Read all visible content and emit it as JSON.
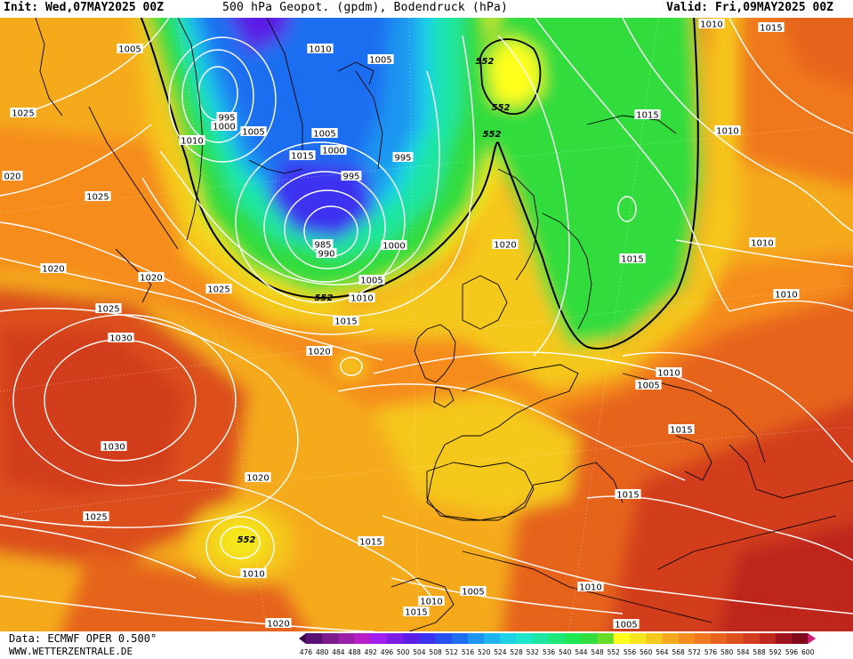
{
  "header": {
    "init": "Init: Wed,07MAY2025 00Z",
    "title": "500 hPa Geopot. (gpdm), Bodendruck (hPa)",
    "valid": "Valid: Fri,09MAY2025 00Z"
  },
  "footer": {
    "data_source": "Data: ECMWF OPER 0.500°",
    "website": "WWW.WETTERZENTRALE.DE"
  },
  "legend": {
    "values": [
      "476",
      "480",
      "484",
      "488",
      "492",
      "496",
      "500",
      "504",
      "508",
      "512",
      "516",
      "520",
      "524",
      "528",
      "532",
      "536",
      "540",
      "544",
      "548",
      "552",
      "556",
      "560",
      "564",
      "568",
      "572",
      "576",
      "580",
      "584",
      "588",
      "592",
      "596",
      "600"
    ],
    "colors": [
      "#3c0a50",
      "#5a1070",
      "#7a1c8c",
      "#9a1fa8",
      "#b81ec8",
      "#a01ef0",
      "#7d1ee6",
      "#5a1ee6",
      "#3c32f0",
      "#2850f0",
      "#1e6ef0",
      "#1e96f0",
      "#1eb4f0",
      "#1ed2e6",
      "#1ee6c8",
      "#1ee6a0",
      "#1ee678",
      "#1ee650",
      "#32dc3c",
      "#64dc28",
      "#ffff1e",
      "#f5e61e",
      "#f5c81e",
      "#f5aa1e",
      "#f58c1e",
      "#f0781e",
      "#e6641e",
      "#dc501e",
      "#d23c1e",
      "#be281e",
      "#a0141e",
      "#820a1e",
      "#d21e78"
    ]
  },
  "map": {
    "contour_552_label": "552",
    "isobar_labels": [
      "1005",
      "1010",
      "1005",
      "1025",
      "1010",
      "995",
      "1000",
      "1005",
      "1005",
      "1015",
      "1000",
      "995",
      "995",
      "985",
      "990",
      "1000",
      "1005",
      "1010",
      "1015",
      "1020",
      "1025",
      "1020",
      "1025",
      "1020",
      "1025",
      "1030",
      "1030",
      "1020",
      "1025",
      "1015",
      "1010",
      "1020",
      "1015",
      "1010",
      "1015",
      "1010",
      "1010",
      "1015",
      "1010",
      "1010",
      "1005",
      "1015",
      "1015",
      "1010",
      "1005",
      "1010",
      "1015",
      "1020",
      "1005",
      "020"
    ],
    "center_labels": [
      "552",
      "552",
      "552",
      "552",
      "552"
    ]
  }
}
